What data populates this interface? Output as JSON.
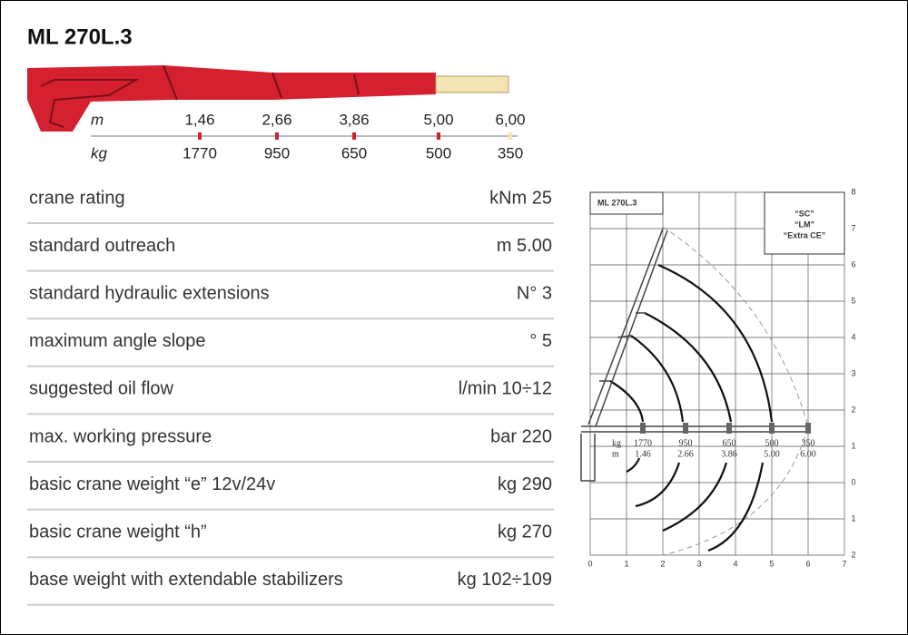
{
  "title": "ML 270L.3",
  "boom_scale": {
    "m_label": "m",
    "kg_label": "kg",
    "m": [
      "1,46",
      "2,66",
      "3,86",
      "5,00",
      "6,00"
    ],
    "kg": [
      "1770",
      "950",
      "650",
      "500",
      "350"
    ]
  },
  "specs": [
    {
      "label": "crane rating",
      "value": "kNm 25"
    },
    {
      "label": "standard outreach",
      "value": "m 5.00"
    },
    {
      "label": "standard hydraulic extensions",
      "value": "N° 3"
    },
    {
      "label": "maximum angle slope",
      "value": "° 5"
    },
    {
      "label": "suggested oil flow",
      "value": "l/min 10÷12"
    },
    {
      "label": "max. working pressure",
      "value": "bar 220"
    },
    {
      "label": "basic crane weight “e” 12v/24v",
      "value": "kg 290"
    },
    {
      "label": "basic crane weight “h”",
      "value": "kg 270"
    },
    {
      "label": "base weight with extendable stabilizers",
      "value": "kg 102÷109"
    }
  ],
  "diagram": {
    "title": "ML 270L.3",
    "legend": [
      "“SC”",
      "“LM”",
      "“Extra CE”"
    ],
    "x_labels": [
      "0",
      "1",
      "2",
      "3",
      "4",
      "5",
      "6",
      "7"
    ],
    "y_labels": [
      "8",
      "7",
      "6",
      "5",
      "4",
      "3",
      "2",
      "1",
      "0",
      "1",
      "2"
    ],
    "kg_label": "kg",
    "m_label": "m",
    "kg": [
      "1770",
      "950",
      "650",
      "500",
      "350"
    ],
    "m": [
      "1.46",
      "2.66",
      "3.86",
      "5.00",
      "6.00"
    ]
  }
}
